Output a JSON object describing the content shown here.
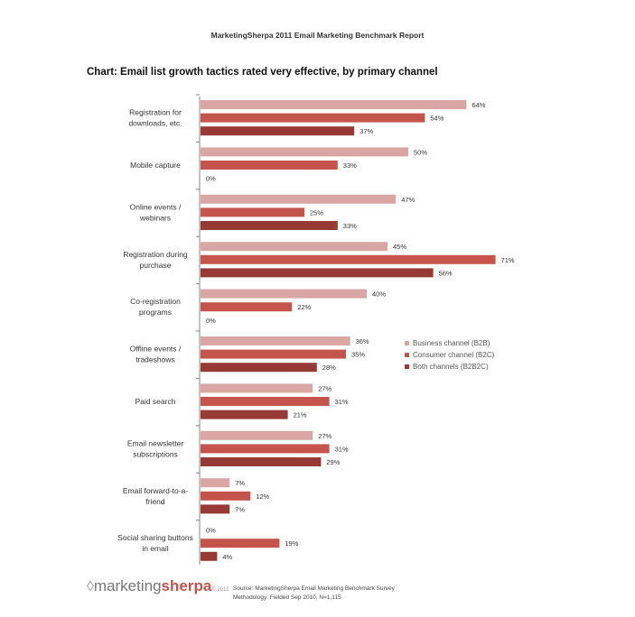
{
  "report_title": "MarketingSherpa 2011 Email Marketing Benchmark Report",
  "chart_title": "Chart: Email list growth tactics rated very effective, by primary channel",
  "colors": {
    "b2b": "#d9a6a3",
    "b2c": "#c4544c",
    "b2b2c": "#973a35",
    "axis": "#888888"
  },
  "chart_data": {
    "type": "bar",
    "orientation": "horizontal",
    "title": "Chart: Email list growth tactics rated very effective, by primary channel",
    "categories": [
      [
        "Registration for",
        "downloads, etc."
      ],
      [
        "Mobile capture"
      ],
      [
        "Online events /",
        "webinars"
      ],
      [
        "Registration during",
        "purchase"
      ],
      [
        "Co-registration",
        "programs"
      ],
      [
        "Offline events /",
        "tradeshows"
      ],
      [
        "Paid search"
      ],
      [
        "Email newsletter",
        "subscriptions"
      ],
      [
        "Email forward-to-a-",
        "friend"
      ],
      [
        "Social sharing buttons",
        "in email"
      ]
    ],
    "series": [
      {
        "name": "Business channel (B2B)",
        "key": "b2b",
        "values": [
          64,
          50,
          47,
          45,
          40,
          36,
          27,
          27,
          7,
          0
        ]
      },
      {
        "name": "Consumer channel (B2C)",
        "key": "b2c",
        "values": [
          54,
          33,
          25,
          71,
          22,
          35,
          31,
          31,
          12,
          19
        ]
      },
      {
        "name": "Both channels (B2B2C)",
        "key": "b2b2c",
        "values": [
          37,
          0,
          33,
          56,
          0,
          28,
          21,
          29,
          7,
          4
        ]
      }
    ],
    "value_suffix": "%",
    "xlim": [
      0,
      100
    ],
    "grid": false,
    "legend_position": "right"
  },
  "footer": {
    "logo_prefix": "marketing",
    "logo_brand": "sherpa",
    "logo_suffix": "© 2011",
    "source_line1": "Source: MarketingSherpa Email Marketing Benchmark Survey",
    "source_line2": "Methodology: Fielded Sep 2010, N=1,115"
  }
}
